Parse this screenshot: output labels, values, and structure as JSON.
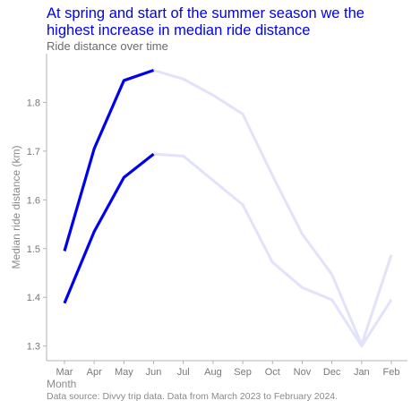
{
  "chart_data": {
    "type": "line",
    "title": "At spring and start of the summer season we the highest increase in median ride distance",
    "subtitle": "Ride distance over time",
    "xlabel": "Month",
    "ylabel": "Median ride distance (km)",
    "caption": "Data source: Divvy trip data. Data from March 2023 to February 2024.",
    "categories": [
      "Mar",
      "Apr",
      "May",
      "Jun",
      "Jul",
      "Aug",
      "Sep",
      "Oct",
      "Nov",
      "Dec",
      "Jan",
      "Feb"
    ],
    "ylim": [
      1.27,
      1.9
    ],
    "yticks": [
      1.3,
      1.4,
      1.5,
      1.6,
      1.7,
      1.8
    ],
    "highlight_range": [
      "Mar",
      "Jun"
    ],
    "colors": {
      "highlight": "#0000ee",
      "faded": "#e2e2fb"
    },
    "series": [
      {
        "values": [
          1.495,
          1.705,
          1.845,
          1.866,
          1.848,
          1.815,
          1.776,
          1.65,
          1.53,
          1.447,
          1.303,
          1.487
        ]
      },
      {
        "values": [
          1.388,
          1.535,
          1.646,
          1.694,
          1.69,
          1.64,
          1.59,
          1.472,
          1.42,
          1.395,
          1.3,
          1.395
        ]
      }
    ]
  }
}
